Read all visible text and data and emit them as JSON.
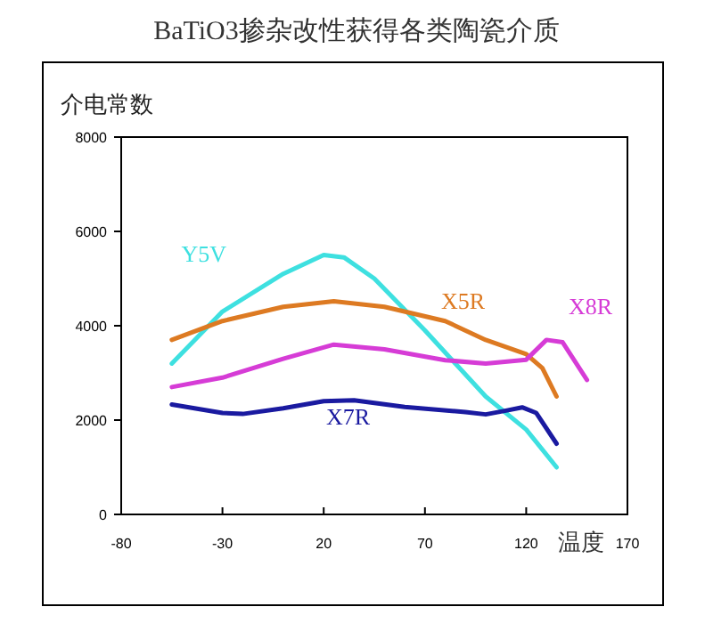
{
  "chart_data": {
    "type": "line",
    "title": "BaTiO3掺杂改性获得各类陶瓷介质",
    "ylabel": "介电常数",
    "xlabel": "温度",
    "xlim": [
      -80,
      170
    ],
    "xticks": [
      -80,
      -30,
      20,
      70,
      120,
      170
    ],
    "ylim": [
      0,
      8000
    ],
    "yticks": [
      0,
      2000,
      4000,
      6000,
      8000
    ],
    "grid": false,
    "legend": false,
    "marker": "none",
    "line_style": "solid",
    "series": [
      {
        "name": "Y5V",
        "color": "#3ee0e0",
        "x": [
          -55,
          -30,
          0,
          20,
          30,
          45,
          70,
          100,
          120,
          135
        ],
        "values": [
          3200,
          4300,
          5100,
          5500,
          5450,
          5000,
          3900,
          2500,
          1800,
          1000
        ]
      },
      {
        "name": "X5R",
        "color": "#dd7a22",
        "x": [
          -55,
          -30,
          0,
          25,
          50,
          80,
          100,
          120,
          128,
          135
        ],
        "values": [
          3700,
          4100,
          4400,
          4520,
          4400,
          4100,
          3700,
          3400,
          3100,
          2500
        ]
      },
      {
        "name": "X8R",
        "color": "#d63cd6",
        "x": [
          -55,
          -30,
          0,
          25,
          50,
          80,
          100,
          120,
          130,
          138,
          150
        ],
        "values": [
          2700,
          2900,
          3300,
          3600,
          3500,
          3270,
          3200,
          3280,
          3700,
          3650,
          2850
        ]
      },
      {
        "name": "X7R",
        "color": "#1a1aa0",
        "x": [
          -55,
          -30,
          -20,
          0,
          20,
          35,
          60,
          90,
          100,
          110,
          118,
          125,
          135
        ],
        "values": [
          2330,
          2150,
          2130,
          2250,
          2400,
          2420,
          2280,
          2170,
          2120,
          2200,
          2270,
          2150,
          1500
        ]
      }
    ]
  }
}
